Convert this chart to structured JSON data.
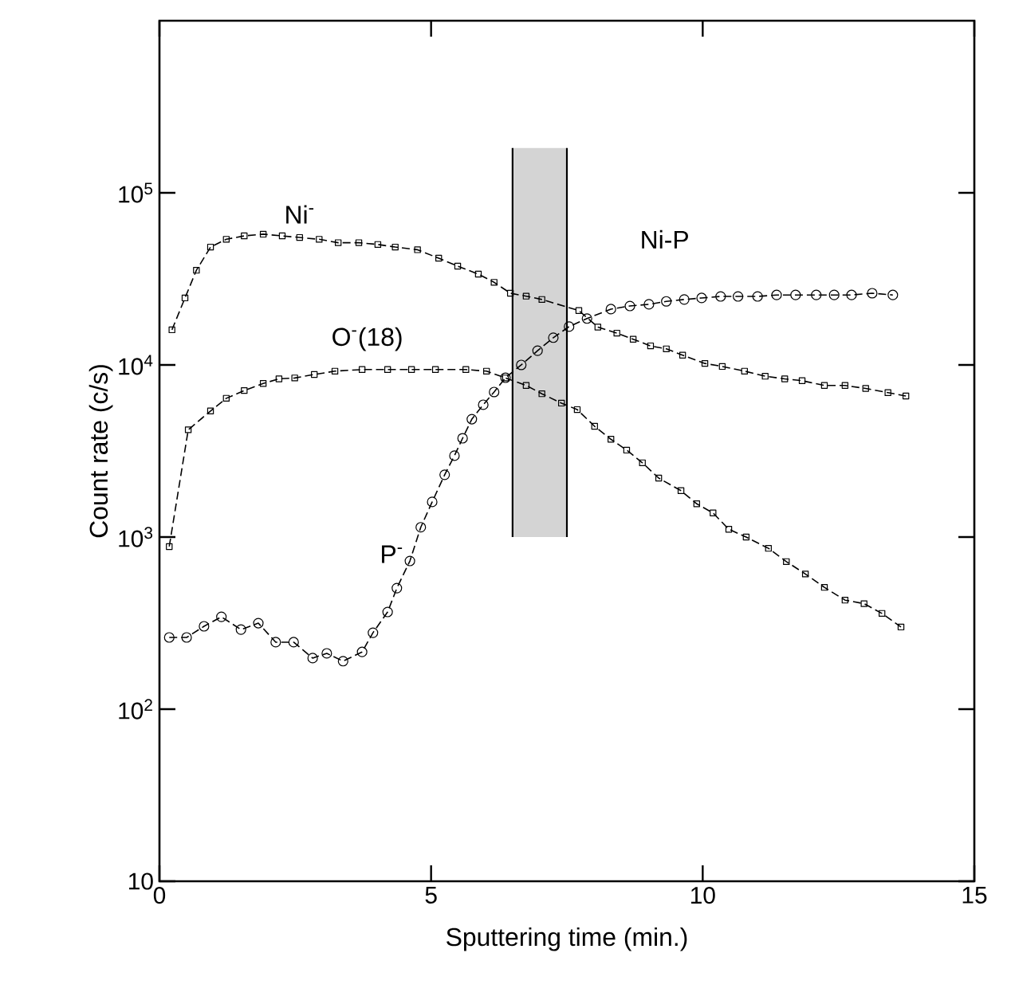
{
  "chart_data": {
    "type": "line",
    "xlabel": "Sputtering time (min.)",
    "ylabel": "Count rate (c/s)",
    "log": "y",
    "xlim": [
      0,
      15
    ],
    "xticks": [
      0,
      5,
      10,
      15
    ],
    "ylim": [
      10,
      1000000
    ],
    "yticks": [
      10,
      {
        "value": 100,
        "label": "10$^{2}$"
      },
      {
        "value": 1000,
        "label": "10$^{3}$"
      },
      {
        "value": 10000,
        "label": "10$^{4}$"
      },
      {
        "value": 100000,
        "label": "10$^{5}$"
      }
    ],
    "grid": false,
    "bands": [
      {
        "axis": "x",
        "from": 6.5,
        "to": 7.5,
        "color": "#d4d4d4"
      }
    ],
    "ref_lines": [
      {
        "axis": "x",
        "value": 6.5,
        "color": "#000000"
      },
      {
        "axis": "x",
        "value": 7.5,
        "color": "#000000"
      }
    ],
    "annotations": [
      "Ni-P"
    ],
    "series": [
      {
        "name": "Ni$^{-}$",
        "color": "#000000",
        "marker": "square",
        "line_style": "dashed",
        "x": [
          0.23,
          0.47,
          0.68,
          0.94,
          1.23,
          1.56,
          1.91,
          2.26,
          2.58,
          2.94,
          3.29,
          3.67,
          4.02,
          4.34,
          4.75,
          5.14,
          5.49,
          5.87,
          6.16,
          6.46,
          6.75,
          7.04,
          7.72,
          8.07,
          8.42,
          8.72,
          9.04,
          9.33,
          9.63,
          10.04,
          10.36,
          10.77,
          11.15,
          11.51,
          11.83,
          12.24,
          12.62,
          13.0,
          13.41,
          13.74
        ],
        "values": [
          16000,
          24500,
          35500,
          48400,
          53700,
          56200,
          57500,
          56200,
          55000,
          53700,
          51300,
          51300,
          50100,
          48400,
          46700,
          41700,
          37500,
          33700,
          30200,
          26100,
          25100,
          24000,
          20700,
          16600,
          15300,
          14100,
          12900,
          12400,
          11400,
          10200,
          9800,
          9200,
          8600,
          8300,
          8100,
          7600,
          7600,
          7300,
          6900,
          6600
        ]
      },
      {
        "name": "O$^{-}$(18)",
        "color": "#000000",
        "marker": "square",
        "line_style": "dashed",
        "x": [
          0.18,
          0.53,
          0.94,
          1.23,
          1.56,
          1.91,
          2.2,
          2.49,
          2.85,
          3.23,
          3.73,
          4.2,
          4.64,
          5.08,
          5.64,
          6.02,
          6.37,
          6.75,
          7.04,
          7.4,
          7.69,
          8.01,
          8.31,
          8.6,
          8.89,
          9.19,
          9.6,
          9.89,
          10.19,
          10.48,
          10.8,
          11.21,
          11.54,
          11.89,
          12.24,
          12.62,
          12.97,
          13.3,
          13.65
        ],
        "values": [
          880,
          4200,
          5400,
          6400,
          7100,
          7800,
          8300,
          8400,
          8800,
          9200,
          9400,
          9400,
          9400,
          9400,
          9400,
          9200,
          8400,
          7600,
          6800,
          6000,
          5500,
          4400,
          3700,
          3200,
          2700,
          2200,
          1860,
          1560,
          1380,
          1110,
          1000,
          860,
          720,
          610,
          510,
          430,
          410,
          360,
          300
        ]
      },
      {
        "name": "P$^{-}$",
        "color": "#000000",
        "marker": "circle",
        "line_style": "dashed",
        "x": [
          0.18,
          0.5,
          0.82,
          1.14,
          1.5,
          1.82,
          2.14,
          2.47,
          2.82,
          3.08,
          3.38,
          3.73,
          3.93,
          4.2,
          4.37,
          4.61,
          4.81,
          5.02,
          5.25,
          5.43,
          5.58,
          5.75,
          5.96,
          6.16,
          6.37,
          6.66,
          6.96,
          7.25,
          7.54,
          7.87,
          8.31,
          8.66,
          9.01,
          9.33,
          9.66,
          9.98,
          10.33,
          10.65,
          11.01,
          11.36,
          11.71,
          12.09,
          12.42,
          12.74,
          13.12,
          13.5
        ],
        "values": [
          261,
          261,
          303,
          344,
          290,
          316,
          245,
          245,
          198,
          211,
          190,
          215,
          278,
          367,
          505,
          726,
          1140,
          1600,
          2300,
          2970,
          3750,
          4840,
          5870,
          6960,
          8430,
          10000,
          12100,
          14400,
          16700,
          18600,
          21100,
          22000,
          22500,
          23400,
          24000,
          24500,
          25000,
          25000,
          25000,
          25500,
          25500,
          25500,
          25500,
          25500,
          26100,
          25500
        ]
      }
    ]
  }
}
